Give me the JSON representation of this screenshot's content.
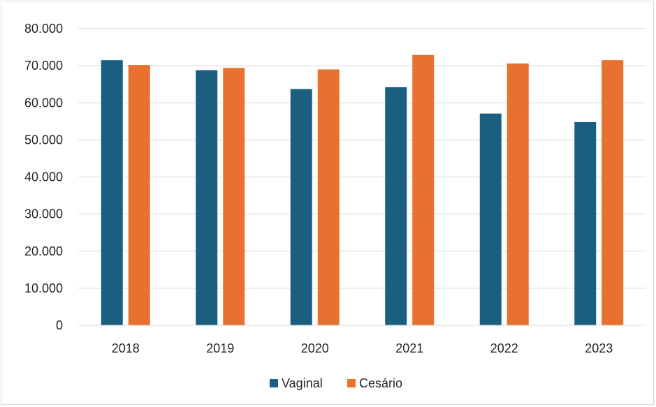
{
  "chart_data": {
    "type": "bar",
    "categories": [
      "2018",
      "2019",
      "2020",
      "2021",
      "2022",
      "2023"
    ],
    "series": [
      {
        "name": "Vaginal",
        "color": "#1a5e80",
        "values": [
          71500,
          68800,
          63700,
          64200,
          57100,
          54800
        ]
      },
      {
        "name": "Cesário",
        "color": "#e8712f",
        "values": [
          70200,
          69400,
          69000,
          72900,
          70600,
          71500
        ]
      }
    ],
    "ylim": [
      0,
      80000
    ],
    "yticks": [
      0,
      10000,
      20000,
      30000,
      40000,
      50000,
      60000,
      70000,
      80000
    ],
    "ytick_labels": [
      "0",
      "10.000",
      "20.000",
      "30.000",
      "40.000",
      "50.000",
      "60.000",
      "70.000",
      "80.000"
    ],
    "grid": true,
    "legend_position": "bottom",
    "title": "",
    "xlabel": "",
    "ylabel": ""
  }
}
